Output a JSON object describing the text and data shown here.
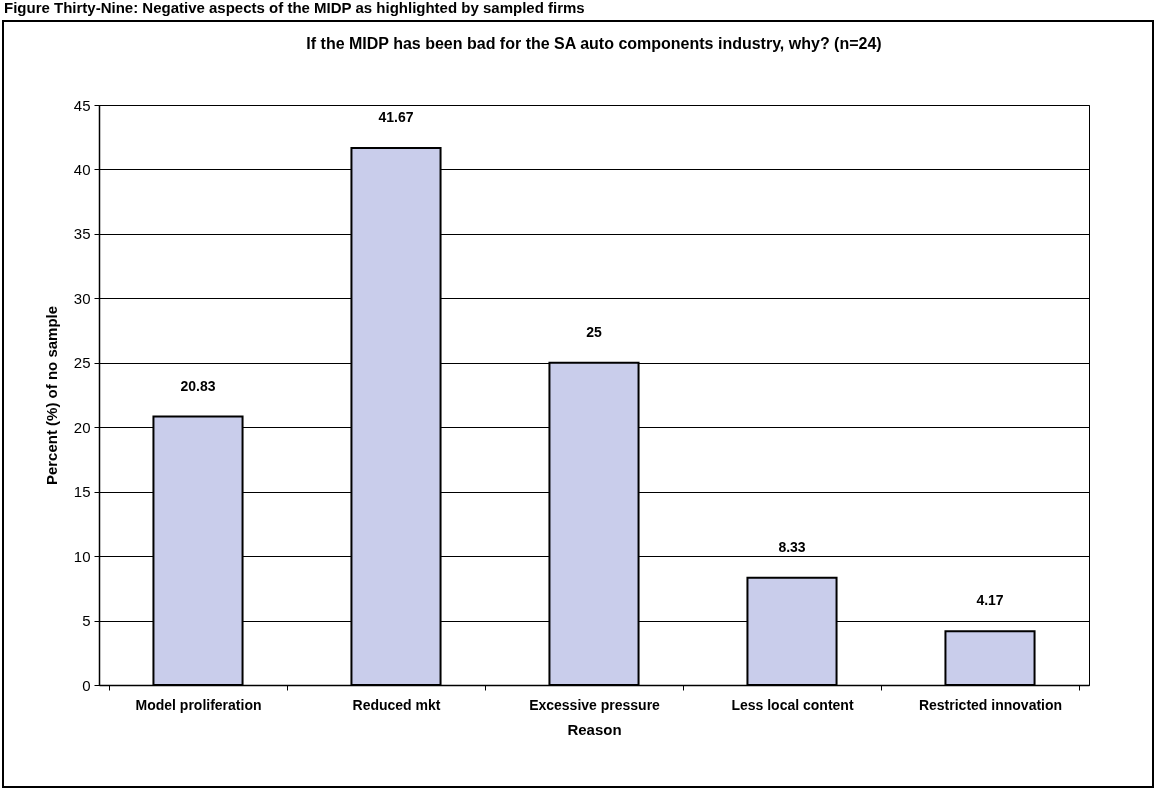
{
  "chart_data": {
    "type": "bar",
    "title": "If the MIDP has been bad for the SA auto components industry, why? (n=24)",
    "annotations": [
      "Figure Thirty-Nine: Negative aspects of the MIDP as highlighted by sampled firms"
    ],
    "xlabel": "Reason",
    "ylabel": "Percent (%) of no sample",
    "categories": [
      "Model proliferation",
      "Reduced mkt",
      "Excessive pressure",
      "Less local content",
      "Restricted innovation"
    ],
    "values": [
      20.83,
      41.67,
      25,
      8.33,
      4.17
    ],
    "color": "#c9cdeb",
    "ylim": [
      0,
      45
    ],
    "yticks": [
      0,
      5,
      10,
      15,
      20,
      25,
      30,
      35,
      40,
      45
    ],
    "grid": "y",
    "data_labels": true
  }
}
